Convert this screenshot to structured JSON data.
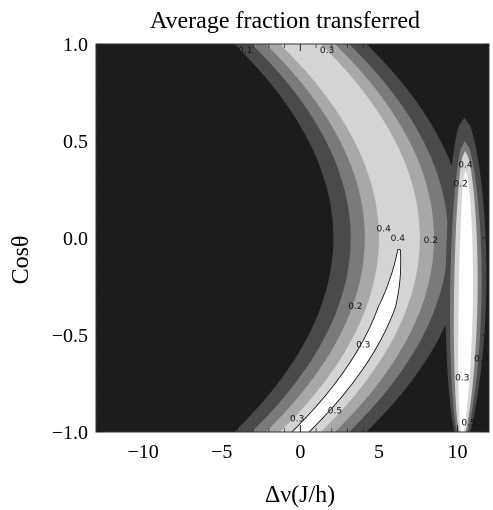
{
  "chart_data": {
    "type": "contour",
    "title": "Average fraction transferred",
    "xlabel": "Δν(J/h)",
    "ylabel": "Cosθ",
    "xlim": [
      -13,
      12
    ],
    "ylim": [
      -1.0,
      1.0
    ],
    "x_ticks": [
      -10,
      -5,
      0,
      5,
      10
    ],
    "x_tick_labels": [
      "−10",
      "−5",
      "0",
      "5",
      "10"
    ],
    "y_ticks": [
      -1.0,
      -0.5,
      0.0,
      0.5,
      1.0
    ],
    "y_tick_labels": [
      "−1.0",
      "−0.5",
      "0.0",
      "0.5",
      "1.0"
    ],
    "levels": [
      0.1,
      0.2,
      0.3,
      0.4,
      0.5
    ],
    "level_colors": [
      "#1c1c1c",
      "#4a4a4a",
      "#7a7a7a",
      "#a8a8a8",
      "#d4d4d4",
      "#ffffff"
    ],
    "background_color": "#1c1c1c",
    "contour_labels": [
      {
        "text": "0.1",
        "x": -3.5,
        "y": 0.97
      },
      {
        "text": "0.3",
        "x": 1.7,
        "y": 0.97
      },
      {
        "text": "0.4",
        "x": 10.5,
        "y": 0.38
      },
      {
        "text": "0.2",
        "x": 10.2,
        "y": 0.28
      },
      {
        "text": "0.4",
        "x": 5.3,
        "y": 0.05
      },
      {
        "text": "0.4",
        "x": 6.2,
        "y": 0.0
      },
      {
        "text": "0.2",
        "x": 8.3,
        "y": -0.01
      },
      {
        "text": "0.2",
        "x": 3.5,
        "y": -0.35
      },
      {
        "text": "0.3",
        "x": 4.0,
        "y": -0.55
      },
      {
        "text": "0.3",
        "x": 11.5,
        "y": -0.62
      },
      {
        "text": "0.3",
        "x": 10.3,
        "y": -0.72
      },
      {
        "text": "0.3",
        "x": -0.2,
        "y": -0.93
      },
      {
        "text": "0.5",
        "x": 2.2,
        "y": -0.89
      },
      {
        "text": "0.5",
        "x": 10.7,
        "y": -0.95
      }
    ]
  }
}
